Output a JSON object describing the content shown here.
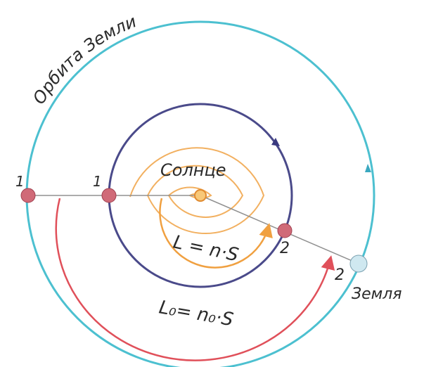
{
  "labels": {
    "orbit": "Орбита Земли",
    "sun": "Солнце",
    "earth": "Земля",
    "point1_outer": "1",
    "point1_inner": "1",
    "point2_inner": "2",
    "point2_outer": "2",
    "inner_formula": "L = n·S",
    "outer_formula": "L₀= n₀·S"
  }
}
